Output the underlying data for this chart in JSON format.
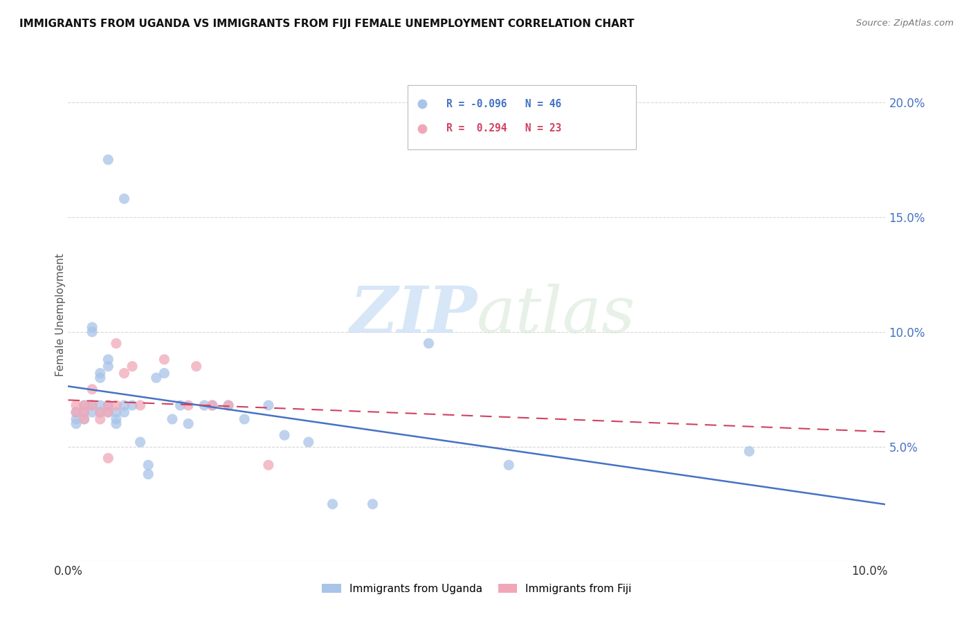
{
  "title": "IMMIGRANTS FROM UGANDA VS IMMIGRANTS FROM FIJI FEMALE UNEMPLOYMENT CORRELATION CHART",
  "source": "Source: ZipAtlas.com",
  "ylabel": "Female Unemployment",
  "xlim": [
    0.0,
    0.102
  ],
  "ylim": [
    0.0,
    0.215
  ],
  "yticks": [
    0.05,
    0.1,
    0.15,
    0.2
  ],
  "ytick_labels": [
    "5.0%",
    "10.0%",
    "15.0%",
    "20.0%"
  ],
  "xticks": [
    0.0,
    0.02,
    0.04,
    0.06,
    0.08,
    0.1
  ],
  "xtick_labels": [
    "0.0%",
    "",
    "",
    "",
    "",
    "10.0%"
  ],
  "legend_label1": "Immigrants from Uganda",
  "legend_label2": "Immigrants from Fiji",
  "r1": -0.096,
  "n1": 46,
  "r2": 0.294,
  "n2": 23,
  "color1": "#a8c4e8",
  "color2": "#f0a8b8",
  "trendline1_color": "#4472c4",
  "trendline2_color": "#d04060",
  "watermark_color": "#ddeeff",
  "background_color": "#ffffff",
  "uganda_x": [
    0.005,
    0.007,
    0.001,
    0.001,
    0.001,
    0.002,
    0.002,
    0.002,
    0.003,
    0.003,
    0.003,
    0.003,
    0.004,
    0.004,
    0.004,
    0.004,
    0.005,
    0.005,
    0.005,
    0.005,
    0.006,
    0.006,
    0.006,
    0.007,
    0.007,
    0.008,
    0.009,
    0.01,
    0.01,
    0.011,
    0.012,
    0.013,
    0.014,
    0.015,
    0.017,
    0.018,
    0.02,
    0.022,
    0.025,
    0.027,
    0.03,
    0.033,
    0.038,
    0.045,
    0.055,
    0.085
  ],
  "uganda_y": [
    0.175,
    0.158,
    0.065,
    0.062,
    0.06,
    0.068,
    0.065,
    0.062,
    0.102,
    0.1,
    0.068,
    0.065,
    0.082,
    0.08,
    0.068,
    0.065,
    0.088,
    0.085,
    0.068,
    0.065,
    0.065,
    0.062,
    0.06,
    0.068,
    0.065,
    0.068,
    0.052,
    0.042,
    0.038,
    0.08,
    0.082,
    0.062,
    0.068,
    0.06,
    0.068,
    0.068,
    0.068,
    0.062,
    0.068,
    0.055,
    0.052,
    0.025,
    0.025,
    0.095,
    0.042,
    0.048
  ],
  "fiji_x": [
    0.001,
    0.001,
    0.002,
    0.002,
    0.002,
    0.003,
    0.003,
    0.004,
    0.004,
    0.005,
    0.005,
    0.005,
    0.006,
    0.006,
    0.007,
    0.008,
    0.009,
    0.012,
    0.015,
    0.016,
    0.018,
    0.02,
    0.025
  ],
  "fiji_y": [
    0.068,
    0.065,
    0.068,
    0.065,
    0.062,
    0.075,
    0.068,
    0.065,
    0.062,
    0.068,
    0.065,
    0.045,
    0.095,
    0.068,
    0.082,
    0.085,
    0.068,
    0.088,
    0.068,
    0.085,
    0.068,
    0.068,
    0.042
  ]
}
